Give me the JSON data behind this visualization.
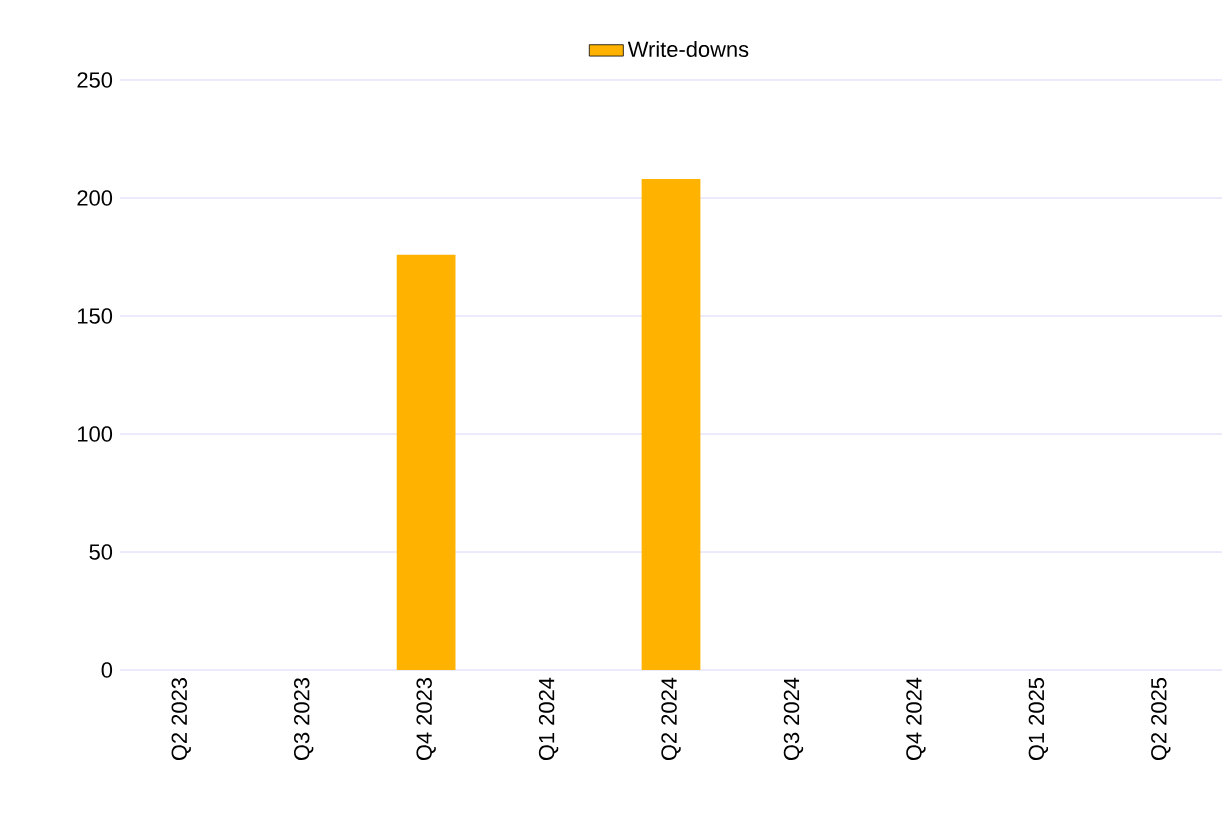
{
  "chart_data": {
    "type": "bar",
    "categories": [
      "Q2 2023",
      "Q3 2023",
      "Q4 2023",
      "Q1 2024",
      "Q2 2024",
      "Q3 2024",
      "Q4 2024",
      "Q1 2025",
      "Q2 2025"
    ],
    "series": [
      {
        "name": "Write-downs",
        "color": "#ffb300",
        "values": [
          null,
          null,
          176,
          null,
          208,
          null,
          null,
          null,
          null
        ]
      }
    ],
    "ylim": [
      0,
      250
    ],
    "yticks": [
      0,
      50,
      100,
      150,
      200,
      250
    ],
    "grid": "y",
    "legend": "top"
  }
}
